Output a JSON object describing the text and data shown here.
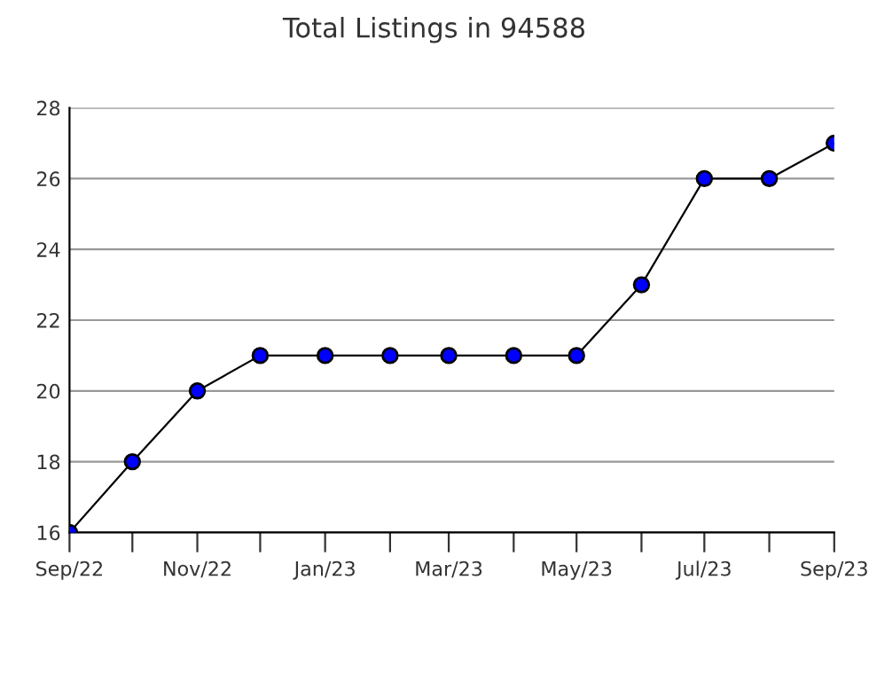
{
  "chart_data": {
    "type": "line",
    "title": "Total Listings in 94588",
    "x": [
      "2022-09",
      "2022-10",
      "2022-11",
      "2022-12",
      "2023-01",
      "2023-02",
      "2023-03",
      "2023-04",
      "2023-05",
      "2023-06",
      "2023-07",
      "2023-08",
      "2023-09"
    ],
    "series": [
      {
        "color": "#0000ff",
        "values": [
          16,
          18,
          20,
          21,
          21,
          21,
          21,
          21,
          21,
          23,
          26,
          26,
          27
        ]
      }
    ],
    "xlim": [
      "2022-09",
      "2023-09"
    ],
    "xticks": [
      {
        "value": "2022-09",
        "label": "Sep/22"
      },
      {
        "value": "2022-10",
        "label": null
      },
      {
        "value": "2022-11",
        "label": "Nov/22"
      },
      {
        "value": "2022-12",
        "label": null
      },
      {
        "value": "2023-01",
        "label": "Jan/23"
      },
      {
        "value": "2023-02",
        "label": null
      },
      {
        "value": "2023-03",
        "label": "Mar/23"
      },
      {
        "value": "2023-04",
        "label": null
      },
      {
        "value": "2023-05",
        "label": "May/23"
      },
      {
        "value": "2023-06",
        "label": null
      },
      {
        "value": "2023-07",
        "label": "Jul/23"
      },
      {
        "value": "2023-08",
        "label": null
      },
      {
        "value": "2023-09",
        "label": "Sep/23"
      }
    ],
    "ylim": [
      16,
      28
    ],
    "yticks": [
      16,
      18,
      20,
      22,
      24,
      26,
      28
    ],
    "grid": "y",
    "marker": "circle",
    "line_style": "solid",
    "legend": false
  }
}
